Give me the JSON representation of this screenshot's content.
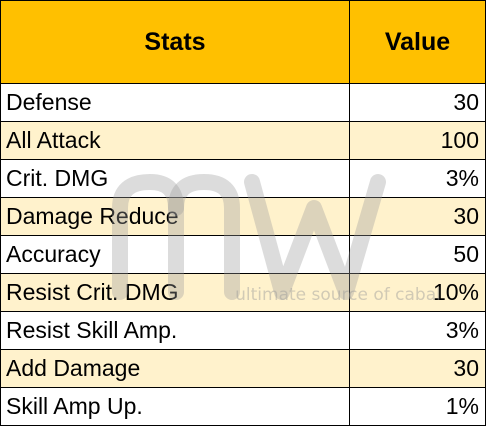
{
  "table": {
    "headers": [
      "Stats",
      "Value"
    ],
    "rows": [
      {
        "stat": "Defense",
        "value": "30",
        "highlight": false
      },
      {
        "stat": "All Attack",
        "value": "100",
        "highlight": true
      },
      {
        "stat": "Crit. DMG",
        "value": "3%",
        "highlight": false
      },
      {
        "stat": "Damage Reduce",
        "value": "30",
        "highlight": true
      },
      {
        "stat": "Accuracy",
        "value": "50",
        "highlight": false
      },
      {
        "stat": "Resist Crit. DMG",
        "value": "10%",
        "highlight": true
      },
      {
        "stat": "Resist Skill Amp.",
        "value": "3%",
        "highlight": false
      },
      {
        "stat": "Add Damage",
        "value": "30",
        "highlight": true
      },
      {
        "stat": "Skill Amp Up.",
        "value": "1%",
        "highlight": false
      }
    ]
  },
  "watermark": {
    "logo": "mw",
    "tagline": "ultimate source of cabal"
  },
  "colors": {
    "header_bg": "#ffc000",
    "highlight_bg": "#fff2cc",
    "plain_bg": "#ffffff",
    "border": "#000000"
  }
}
